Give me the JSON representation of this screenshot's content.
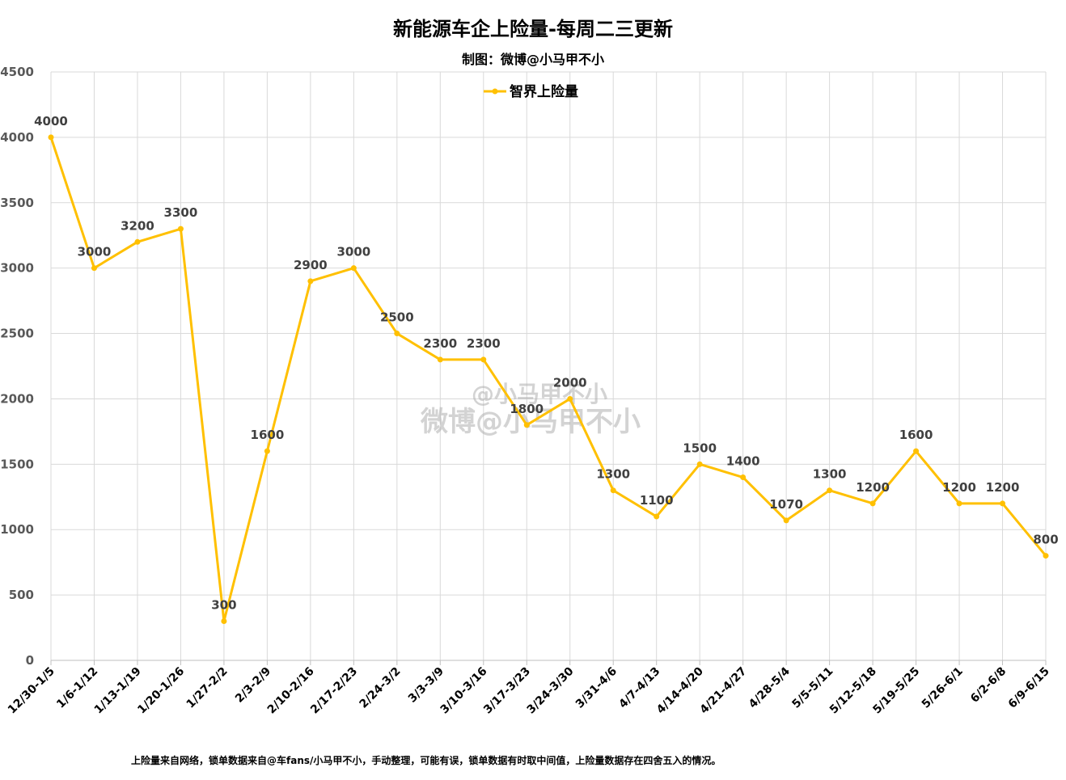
{
  "chart_data": {
    "type": "line",
    "title": "新能源车企上险量-每周二三更新",
    "subtitle": "制图：微博@小马甲不小",
    "categories": [
      "12/30-1/5",
      "1/6-1/12",
      "1/13-1/19",
      "1/20-1/26",
      "1/27-2/2",
      "2/3-2/9",
      "2/10-2/16",
      "2/17-2/23",
      "2/24-3/2",
      "3/3-3/9",
      "3/10-3/16",
      "3/17-3/23",
      "3/24-3/30",
      "3/31-4/6",
      "4/7-4/13",
      "4/14-4/20",
      "4/21-4/27",
      "4/28-5/4",
      "5/5-5/11",
      "5/12-5/18",
      "5/19-5/25",
      "5/26-6/1",
      "6/2-6/8",
      "6/9-6/15"
    ],
    "series": [
      {
        "name": "智界上险量",
        "color": "#FFC000",
        "values": [
          4000,
          3000,
          3200,
          3300,
          300,
          1600,
          2900,
          3000,
          2500,
          2300,
          2300,
          1800,
          2000,
          1300,
          1100,
          1500,
          1400,
          1070,
          1300,
          1200,
          1600,
          1200,
          1200,
          800
        ]
      }
    ],
    "ylim": [
      0,
      4500
    ],
    "yticks": [
      0,
      500,
      1000,
      1500,
      2000,
      2500,
      3000,
      3500,
      4000,
      4500
    ],
    "grid": true,
    "legend_position": "top-center",
    "data_labels": true,
    "footnote": "上险量来自网络，锁单数据来自@车fans/小马甲不小，手动整理，可能有误，锁单数据有时取中间值，上险量数据存在四舍五入的情况。",
    "watermark": {
      "line1": "@小马甲不小",
      "line2": "微博@小马甲不小"
    }
  },
  "colors": {
    "line": "#FFC000",
    "grid": "#d9d9d9",
    "label": "#404040"
  }
}
